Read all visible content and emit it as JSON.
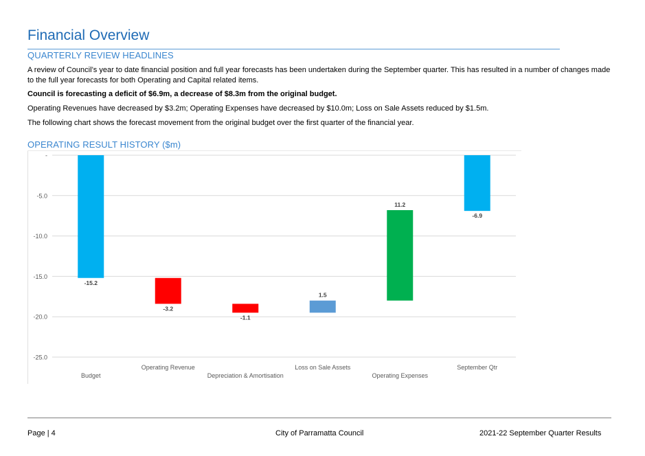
{
  "header": {
    "title": "Financial Overview"
  },
  "headlines": {
    "heading": "QUARTERLY REVIEW HEADLINES",
    "para1": "A review of Council’s year to date financial position and full year forecasts has been undertaken during the September quarter. This has resulted in a number of changes made to the full year forecasts for both Operating and Capital related items.",
    "para2_bold": "Council is forecasting a deficit of $6.9m, a decrease of $8.3m from the original budget.",
    "para3": "Operating Revenues have decreased by $3.2m; Operating Expenses have decreased by $10.0m; Loss on Sale Assets reduced by $1.5m.",
    "para4": "The following chart shows the forecast movement from the original budget over the first quarter of the financial year."
  },
  "chart_section": {
    "heading": "OPERATING RESULT HISTORY ($m)"
  },
  "chart_data": {
    "type": "bar",
    "subtype": "waterfall",
    "title": "OPERATING RESULT HISTORY ($m)",
    "categories": [
      "Budget",
      "Operating Revenue",
      "Depreciation & Amortisation",
      "Loss on Sale Assets",
      "Operating Expenses",
      "September Qtr"
    ],
    "values": [
      -15.2,
      -3.2,
      -1.1,
      1.5,
      11.2,
      -6.9
    ],
    "data_labels": [
      "-15.2",
      "-3.2",
      "-1.1",
      "1.5",
      "11.2",
      "-6.9"
    ],
    "bar_kind": [
      "total",
      "change",
      "change",
      "change",
      "change",
      "total"
    ],
    "colors": [
      "#00b0f0",
      "#ff0000",
      "#ff0000",
      "#5b9bd5",
      "#00b050",
      "#00b0f0"
    ],
    "ylim": [
      -25,
      0
    ],
    "yticks": [
      0,
      -5,
      -10,
      -15,
      -20,
      -25
    ],
    "ytick_labels": [
      "-",
      "-5.0",
      "-10.0",
      "-15.0",
      "-20.0",
      "-25.0"
    ],
    "grid": true,
    "xlabel": "",
    "ylabel": ""
  },
  "footer": {
    "page": "Page | 4",
    "org": "City of Parramatta Council",
    "doc": "2021-22 September Quarter Results"
  }
}
